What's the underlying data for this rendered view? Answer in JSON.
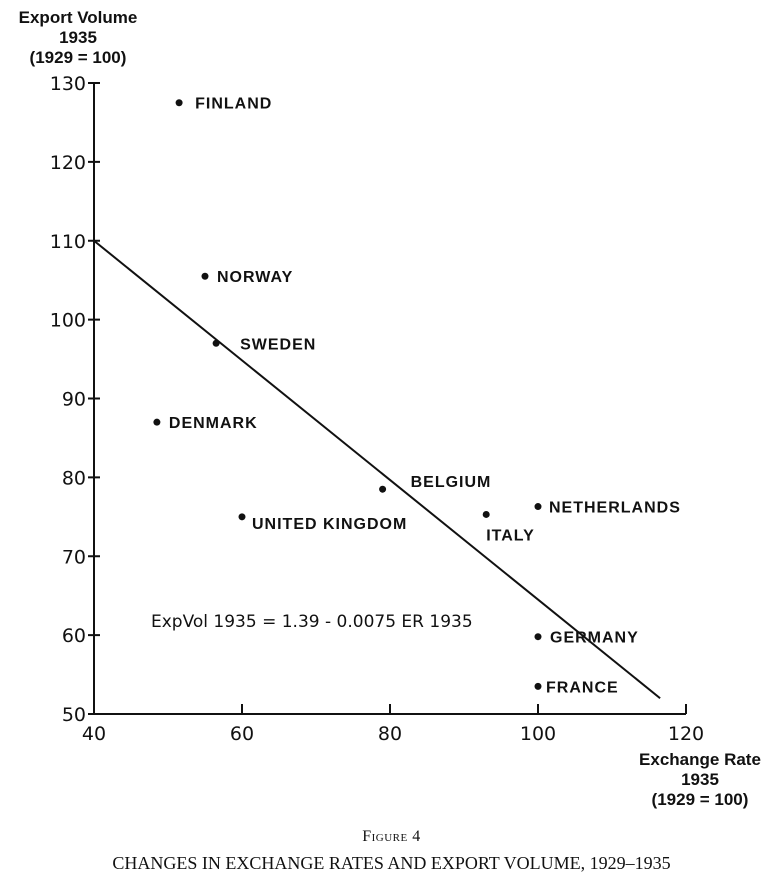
{
  "chart_data": {
    "type": "scatter",
    "ylabel_lines": [
      "Export Volume",
      "1935",
      "(1929 = 100)"
    ],
    "xlabel_lines": [
      "Exchange Rate",
      "1935",
      "(1929 = 100)"
    ],
    "xlim": [
      40,
      120
    ],
    "ylim": [
      50,
      130
    ],
    "xticks": [
      40,
      60,
      80,
      100,
      120
    ],
    "yticks": [
      50,
      60,
      70,
      80,
      90,
      100,
      110,
      120,
      130
    ],
    "grid": false,
    "points": [
      {
        "label": "FINLAND",
        "x": 51.5,
        "y": 127.5
      },
      {
        "label": "NORWAY",
        "x": 55,
        "y": 105.5
      },
      {
        "label": "SWEDEN",
        "x": 56.5,
        "y": 97
      },
      {
        "label": "DENMARK",
        "x": 48.5,
        "y": 87
      },
      {
        "label": "BELGIUM",
        "x": 79,
        "y": 78.5
      },
      {
        "label": "UNITED KINGDOM",
        "x": 60,
        "y": 75
      },
      {
        "label": "ITALY",
        "x": 93,
        "y": 75.3
      },
      {
        "label": "NETHERLANDS",
        "x": 100,
        "y": 76.3
      },
      {
        "label": "GERMANY",
        "x": 100,
        "y": 59.8
      },
      {
        "label": "FRANCE",
        "x": 100,
        "y": 53.5
      }
    ],
    "fit_line": {
      "x": [
        40,
        116.5
      ],
      "y": [
        110,
        52
      ]
    },
    "equation": "ExpVol 1935 = 1.39 - 0.0075 ER 1935"
  },
  "caption": {
    "figure": "Figure 4",
    "title": "CHANGES IN EXCHANGE RATES AND EXPORT VOLUME, 1929–1935"
  }
}
